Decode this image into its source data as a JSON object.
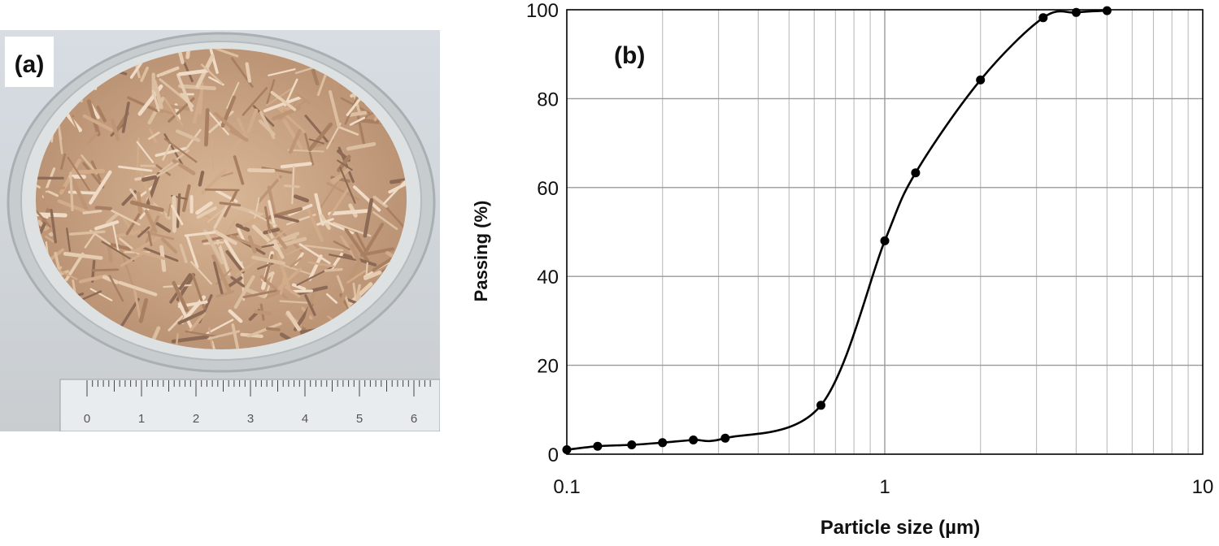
{
  "figure": {
    "panel_a_label": "(a)",
    "panel_b_label": "(b)",
    "photo_description": "petri dish with wood chips and ruler",
    "ruler_numbers": [
      "0",
      "1",
      "2",
      "3",
      "4",
      "5",
      "6"
    ]
  },
  "chart_data": {
    "type": "line",
    "title": "",
    "xlabel": "Particle size (µm)",
    "ylabel": "Passing (%)",
    "xscale": "log",
    "xlim": [
      0.1,
      10
    ],
    "ylim": [
      0,
      100
    ],
    "xticks": [
      0.1,
      1,
      10
    ],
    "xtick_labels": [
      "0.1",
      "1",
      "10"
    ],
    "yticks": [
      0,
      20,
      40,
      60,
      80,
      100
    ],
    "ytick_labels": [
      "0",
      "20",
      "40",
      "60",
      "80",
      "100"
    ],
    "grid": true,
    "series": [
      {
        "name": "Passing",
        "markers": true,
        "x": [
          0.1,
          0.125,
          0.16,
          0.2,
          0.25,
          0.315,
          0.63,
          1.0,
          1.25,
          2.0,
          3.15,
          4.0,
          5.0
        ],
        "y": [
          1,
          1.8,
          2.1,
          2.6,
          3.2,
          3.6,
          11,
          48,
          63.3,
          84.2,
          98.2,
          99.4,
          99.8
        ]
      }
    ]
  },
  "colors": {
    "curve": "#000000",
    "grid": "#bfbfbf",
    "wood": "#c9a27f",
    "dish": "#cfd3d5"
  }
}
